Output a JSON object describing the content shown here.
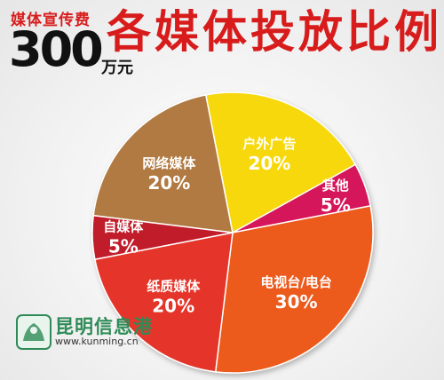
{
  "header": {
    "budget_label": "媒体宣传费",
    "budget_value": "300",
    "budget_unit": "万元",
    "title": "各媒体投放比例"
  },
  "chart_data": {
    "type": "pie",
    "title": "各媒体投放比例",
    "slices": [
      {
        "label": "网络媒体",
        "value": 20,
        "display": "20%",
        "color": "#b07a43"
      },
      {
        "label": "户外广告",
        "value": 20,
        "display": "20%",
        "color": "#f7d811"
      },
      {
        "label": "其他",
        "value": 5,
        "display": "5%",
        "color": "#d6175a"
      },
      {
        "label": "电视台/电台",
        "value": 30,
        "display": "30%",
        "color": "#ec5a1a"
      },
      {
        "label": "纸质媒体",
        "value": 20,
        "display": "20%",
        "color": "#e5362b"
      },
      {
        "label": "自媒体",
        "value": 5,
        "display": "5%",
        "color": "#c01d2a"
      }
    ]
  },
  "watermark": {
    "name": "昆明信息港",
    "url": "www.kunming.cn",
    "color": "#2e8b57"
  }
}
